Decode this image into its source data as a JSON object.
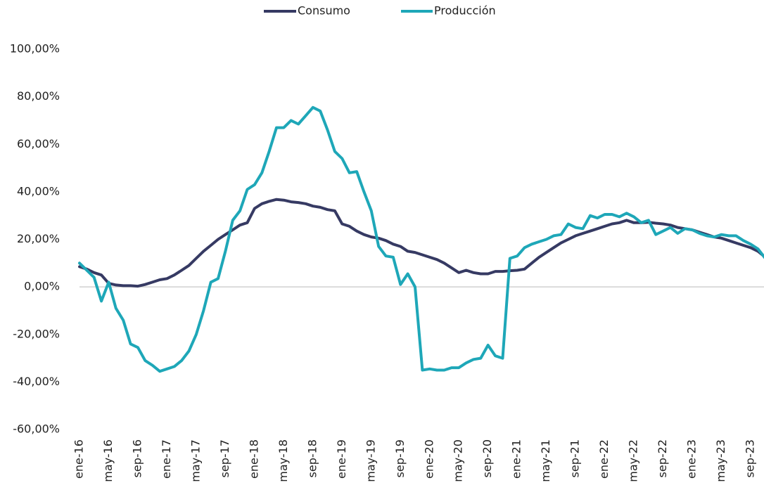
{
  "chart_data": {
    "type": "line",
    "categories": [
      "ene-16",
      null,
      null,
      null,
      "may-16",
      null,
      null,
      null,
      "sep-16",
      null,
      null,
      null,
      "ene-17",
      null,
      null,
      null,
      "may-17",
      null,
      null,
      null,
      "sep-17",
      null,
      null,
      null,
      "ene-18",
      null,
      null,
      null,
      "may-18",
      null,
      null,
      null,
      "sep-18",
      null,
      null,
      null,
      "ene-19",
      null,
      null,
      null,
      "may-19",
      null,
      null,
      null,
      "sep-19",
      null,
      null,
      null,
      "ene-20",
      null,
      null,
      null,
      "may-20",
      null,
      null,
      null,
      "sep-20",
      null,
      null,
      null,
      "ene-21",
      null,
      null,
      null,
      "may-21",
      null,
      null,
      null,
      "sep-21",
      null,
      null,
      null,
      "ene-22",
      null,
      null,
      null,
      "may-22",
      null,
      null,
      null,
      "sep-22",
      null,
      null,
      null,
      "ene-23",
      null,
      null,
      null,
      "may-23",
      null,
      null,
      null,
      "sep-23",
      null,
      null
    ],
    "series": [
      {
        "name": "Consumo",
        "color": "#363a63",
        "values": [
          8.5,
          7.5,
          6,
          5,
          1.5,
          0.8,
          0.5,
          0.5,
          0.3,
          1,
          2,
          3,
          3.5,
          5,
          7,
          9,
          12,
          15,
          17.5,
          20,
          22,
          24,
          26,
          27,
          33,
          35,
          36,
          36.8,
          36.5,
          35.8,
          35.5,
          35,
          34,
          33.5,
          32.5,
          32,
          26.5,
          25.5,
          23.5,
          22,
          21,
          20.5,
          19.5,
          18,
          17,
          15,
          14.5,
          13.5,
          12.5,
          11.5,
          10,
          8,
          6,
          7,
          6,
          5.5,
          5.5,
          6.5,
          6.5,
          6.8,
          7,
          7.5,
          10,
          12.5,
          14.5,
          16.5,
          18.5,
          20,
          21.5,
          22.5,
          23.5,
          24.5,
          25.5,
          26.5,
          27,
          28,
          27,
          27,
          27.2,
          26.8,
          26.5,
          26,
          25,
          24.5,
          24,
          23,
          22,
          21,
          20.5,
          19.5,
          18.5,
          17.5,
          16.5,
          15,
          12.5
        ]
      },
      {
        "name": "Producción",
        "color": "#1ea7b8",
        "values": [
          10,
          7,
          4,
          -6,
          2,
          -9,
          -14,
          -24,
          -25.5,
          -31,
          -33,
          -35.5,
          -34.5,
          -33.5,
          -31,
          -27,
          -20,
          -10,
          2,
          3.5,
          15,
          28,
          32,
          41,
          43,
          48,
          57,
          67,
          67,
          70,
          68.5,
          72,
          75.5,
          74,
          66,
          57,
          54,
          48,
          48.5,
          40,
          32,
          17,
          13,
          12.5,
          1,
          5.5,
          0,
          -35,
          -34.5,
          -35,
          -35,
          -34,
          -34,
          -32,
          -30.5,
          -30,
          -24.5,
          -29,
          -30,
          12,
          13,
          16.5,
          18,
          19,
          20,
          21.5,
          22,
          26.5,
          25,
          24.5,
          30,
          29,
          30.5,
          30.5,
          29.5,
          31,
          29.5,
          27,
          28,
          22,
          23.5,
          25,
          22.5,
          24.5,
          24,
          22.5,
          21.5,
          21,
          22,
          21.5,
          21.5,
          19.5,
          18,
          16,
          12
        ]
      }
    ],
    "ylim": [
      -60,
      100
    ],
    "yticks": [
      {
        "value": -60,
        "label": "-60,00%"
      },
      {
        "value": -40,
        "label": "-40,00%"
      },
      {
        "value": -20,
        "label": "-20,00%"
      },
      {
        "value": 0,
        "label": "0,00%"
      },
      {
        "value": 20,
        "label": "20,00%"
      },
      {
        "value": 40,
        "label": "40,00%"
      },
      {
        "value": 60,
        "label": "60,00%"
      },
      {
        "value": 80,
        "label": "80,00%"
      },
      {
        "value": 100,
        "label": "100,00%"
      }
    ],
    "legend": "top"
  }
}
